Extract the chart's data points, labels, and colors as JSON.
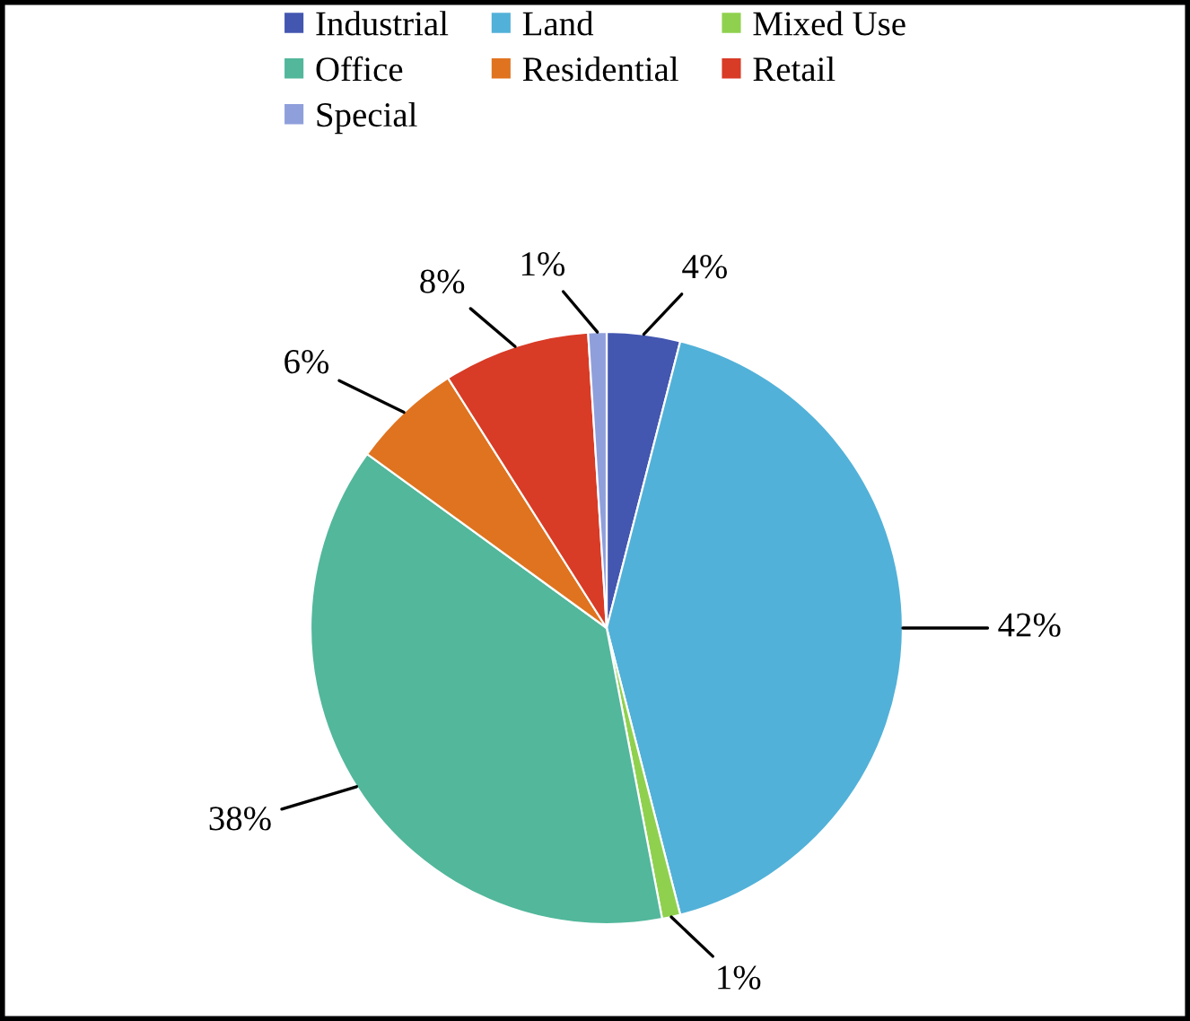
{
  "chart_data": {
    "type": "pie",
    "categories": [
      "Industrial",
      "Land",
      "Mixed Use",
      "Office",
      "Residential",
      "Retail",
      "Special"
    ],
    "values": [
      4,
      42,
      1,
      38,
      6,
      8,
      1
    ],
    "colors": [
      "#4356b0",
      "#52b1d8",
      "#8fd14f",
      "#52b79b",
      "#e0731f",
      "#d83b26",
      "#8f9fdb"
    ],
    "value_labels": [
      "4%",
      "42%",
      "1%",
      "38%",
      "6%",
      "8%",
      "1%"
    ],
    "legend": "top"
  }
}
